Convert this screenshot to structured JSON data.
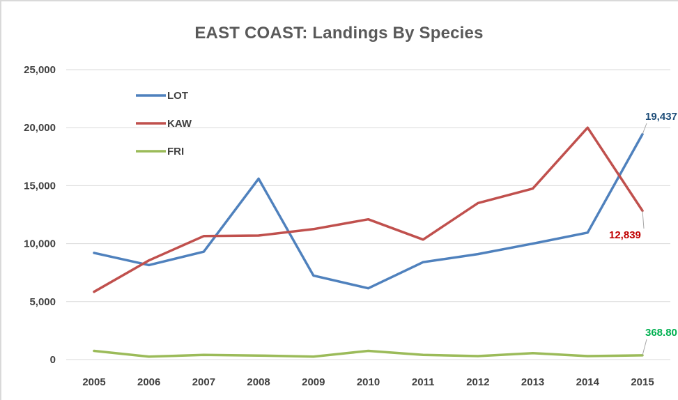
{
  "chart_data": {
    "type": "line",
    "title": "EAST COAST: Landings By Species",
    "xlabel": "",
    "ylabel": "",
    "x": [
      "2005",
      "2006",
      "2007",
      "2008",
      "2009",
      "2010",
      "2011",
      "2012",
      "2013",
      "2014",
      "2015"
    ],
    "ylim": [
      0,
      25000
    ],
    "yticks": [
      0,
      5000,
      10000,
      15000,
      20000,
      25000
    ],
    "ytick_labels": [
      "0",
      "5,000",
      "10,000",
      "15,000",
      "20,000",
      "25,000"
    ],
    "grid": "horizontal",
    "legend_position": "top-left",
    "series": [
      {
        "name": "LOT",
        "color": "#4f81bd",
        "values": [
          9200,
          8150,
          9300,
          15600,
          7250,
          6150,
          8400,
          9100,
          10000,
          10950,
          19437
        ],
        "end_label": "19,437",
        "end_label_color": "#1f4e79"
      },
      {
        "name": "KAW",
        "color": "#c0504d",
        "values": [
          5850,
          8550,
          10650,
          10700,
          11250,
          12100,
          10350,
          13500,
          14750,
          20000,
          12839
        ],
        "end_label": "12,839",
        "end_label_color": "#c00000"
      },
      {
        "name": "FRI",
        "color": "#9bbb59",
        "values": [
          750,
          250,
          400,
          350,
          250,
          750,
          400,
          300,
          550,
          300,
          368.8
        ],
        "end_label": "368.80",
        "end_label_color": "#00b050"
      }
    ]
  }
}
